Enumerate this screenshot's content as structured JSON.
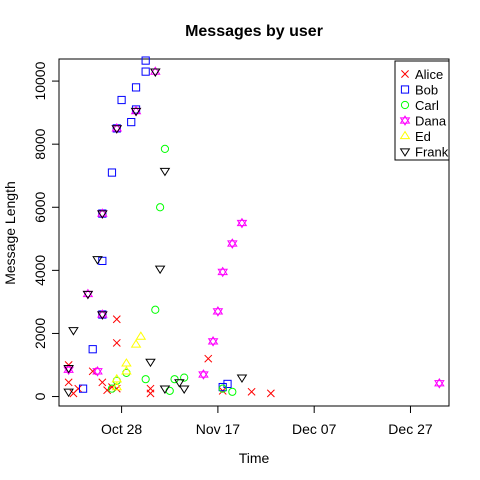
{
  "chart_data": {
    "type": "scatter",
    "title": "Messages by user",
    "xlabel": "Time",
    "ylabel": "Message Length",
    "x_ticks": [
      {
        "label": "Oct 28",
        "date": "2012-10-28"
      },
      {
        "label": "Nov 17",
        "date": "2012-11-17"
      },
      {
        "label": "Dec 07",
        "date": "2012-12-07"
      },
      {
        "label": "Dec 27",
        "date": "2012-12-27"
      }
    ],
    "y_ticks": [
      0,
      2000,
      4000,
      6000,
      8000,
      10000
    ],
    "xlim": [
      "2012-10-15",
      "2013-01-04"
    ],
    "ylim": [
      -300,
      10700
    ],
    "legend_position": "top-right",
    "series": [
      {
        "name": "Alice",
        "color": "#ff0000",
        "symbol": "x",
        "points": [
          [
            "2012-10-17",
            1000
          ],
          [
            "2012-10-17",
            450
          ],
          [
            "2012-10-18",
            100
          ],
          [
            "2012-10-19",
            250
          ],
          [
            "2012-10-22",
            800
          ],
          [
            "2012-10-24",
            450
          ],
          [
            "2012-10-25",
            200
          ],
          [
            "2012-10-26",
            300
          ],
          [
            "2012-10-27",
            250
          ],
          [
            "2012-10-27",
            1700
          ],
          [
            "2012-10-27",
            2450
          ],
          [
            "2012-11-03",
            250
          ],
          [
            "2012-11-03",
            100
          ],
          [
            "2012-11-15",
            1200
          ],
          [
            "2012-11-18",
            180
          ],
          [
            "2012-11-24",
            150
          ],
          [
            "2012-11-28",
            100
          ]
        ]
      },
      {
        "name": "Bob",
        "color": "#0000ff",
        "symbol": "square",
        "points": [
          [
            "2012-10-20",
            250
          ],
          [
            "2012-10-22",
            1500
          ],
          [
            "2012-10-24",
            2600
          ],
          [
            "2012-10-24",
            4300
          ],
          [
            "2012-10-24",
            5800
          ],
          [
            "2012-10-26",
            7100
          ],
          [
            "2012-10-27",
            8500
          ],
          [
            "2012-10-28",
            9400
          ],
          [
            "2012-10-30",
            8700
          ],
          [
            "2012-10-31",
            9100
          ],
          [
            "2012-10-31",
            9800
          ],
          [
            "2012-11-02",
            10300
          ],
          [
            "2012-11-02",
            10650
          ],
          [
            "2012-11-18",
            300
          ],
          [
            "2012-11-19",
            400
          ]
        ]
      },
      {
        "name": "Carl",
        "color": "#00ff00",
        "symbol": "circle",
        "points": [
          [
            "2012-10-26",
            250
          ],
          [
            "2012-10-27",
            500
          ],
          [
            "2012-10-29",
            750
          ],
          [
            "2012-11-02",
            550
          ],
          [
            "2012-11-04",
            2750
          ],
          [
            "2012-11-05",
            6000
          ],
          [
            "2012-11-06",
            7850
          ],
          [
            "2012-11-07",
            180
          ],
          [
            "2012-11-08",
            550
          ],
          [
            "2012-11-10",
            600
          ],
          [
            "2012-11-18",
            250
          ],
          [
            "2012-11-20",
            150
          ]
        ]
      },
      {
        "name": "Dana",
        "color": "#ff00ff",
        "symbol": "star",
        "points": [
          [
            "2012-10-17",
            850
          ],
          [
            "2012-10-21",
            3250
          ],
          [
            "2012-10-23",
            800
          ],
          [
            "2012-10-24",
            2600
          ],
          [
            "2012-10-24",
            5800
          ],
          [
            "2012-10-27",
            8500
          ],
          [
            "2012-10-31",
            9050
          ],
          [
            "2012-11-04",
            10300
          ],
          [
            "2012-11-14",
            700
          ],
          [
            "2012-11-16",
            1750
          ],
          [
            "2012-11-17",
            2700
          ],
          [
            "2012-11-18",
            3950
          ],
          [
            "2012-11-20",
            4850
          ],
          [
            "2012-11-22",
            5500
          ],
          [
            "2013-01-02",
            420
          ]
        ]
      },
      {
        "name": "Ed",
        "color": "#ffff00",
        "symbol": "triangle-up",
        "points": [
          [
            "2012-10-27",
            300
          ],
          [
            "2012-10-27",
            550
          ],
          [
            "2012-10-29",
            800
          ],
          [
            "2012-10-29",
            1050
          ],
          [
            "2012-10-31",
            1650
          ],
          [
            "2012-11-01",
            1900
          ]
        ]
      },
      {
        "name": "Frank",
        "color": "#000000",
        "symbol": "triangle-down",
        "points": [
          [
            "2012-10-17",
            150
          ],
          [
            "2012-10-17",
            900
          ],
          [
            "2012-10-18",
            2100
          ],
          [
            "2012-10-21",
            3250
          ],
          [
            "2012-10-23",
            4350
          ],
          [
            "2012-10-24",
            2600
          ],
          [
            "2012-10-24",
            5800
          ],
          [
            "2012-10-27",
            8500
          ],
          [
            "2012-10-31",
            9050
          ],
          [
            "2012-11-03",
            1100
          ],
          [
            "2012-11-04",
            10300
          ],
          [
            "2012-11-05",
            4050
          ],
          [
            "2012-11-06",
            7150
          ],
          [
            "2012-11-06",
            250
          ],
          [
            "2012-11-09",
            450
          ],
          [
            "2012-11-10",
            250
          ],
          [
            "2012-11-22",
            600
          ]
        ]
      }
    ]
  }
}
